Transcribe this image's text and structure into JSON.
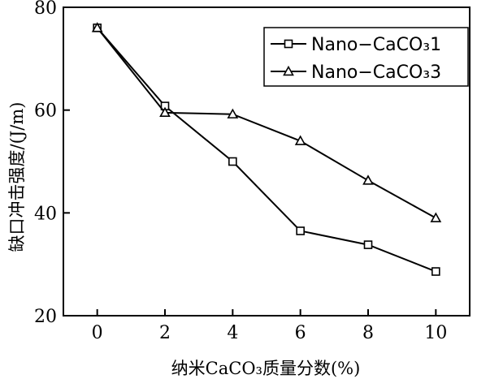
{
  "chart_data": {
    "type": "line",
    "xlabel": "纳米CaCO₃质量分数(%)",
    "ylabel": "缺口冲击强度/(J/m)",
    "xlim": [
      -1,
      11
    ],
    "ylim": [
      20,
      80
    ],
    "xticks": [
      0,
      2,
      4,
      6,
      8,
      10
    ],
    "yticks": [
      20,
      40,
      60,
      80
    ],
    "legend_position": "top-right",
    "grid": false,
    "series": [
      {
        "name": "Nano−CaCO₃1",
        "marker": "square",
        "x": [
          0,
          2,
          4,
          6,
          8,
          10
        ],
        "y": [
          76.0,
          60.8,
          50.0,
          36.5,
          33.8,
          28.6
        ]
      },
      {
        "name": "Nano−CaCO₃3",
        "marker": "triangle",
        "x": [
          0,
          2,
          4,
          6,
          8,
          10
        ],
        "y": [
          76.0,
          59.5,
          59.2,
          54.0,
          46.3,
          39.0
        ]
      }
    ]
  }
}
